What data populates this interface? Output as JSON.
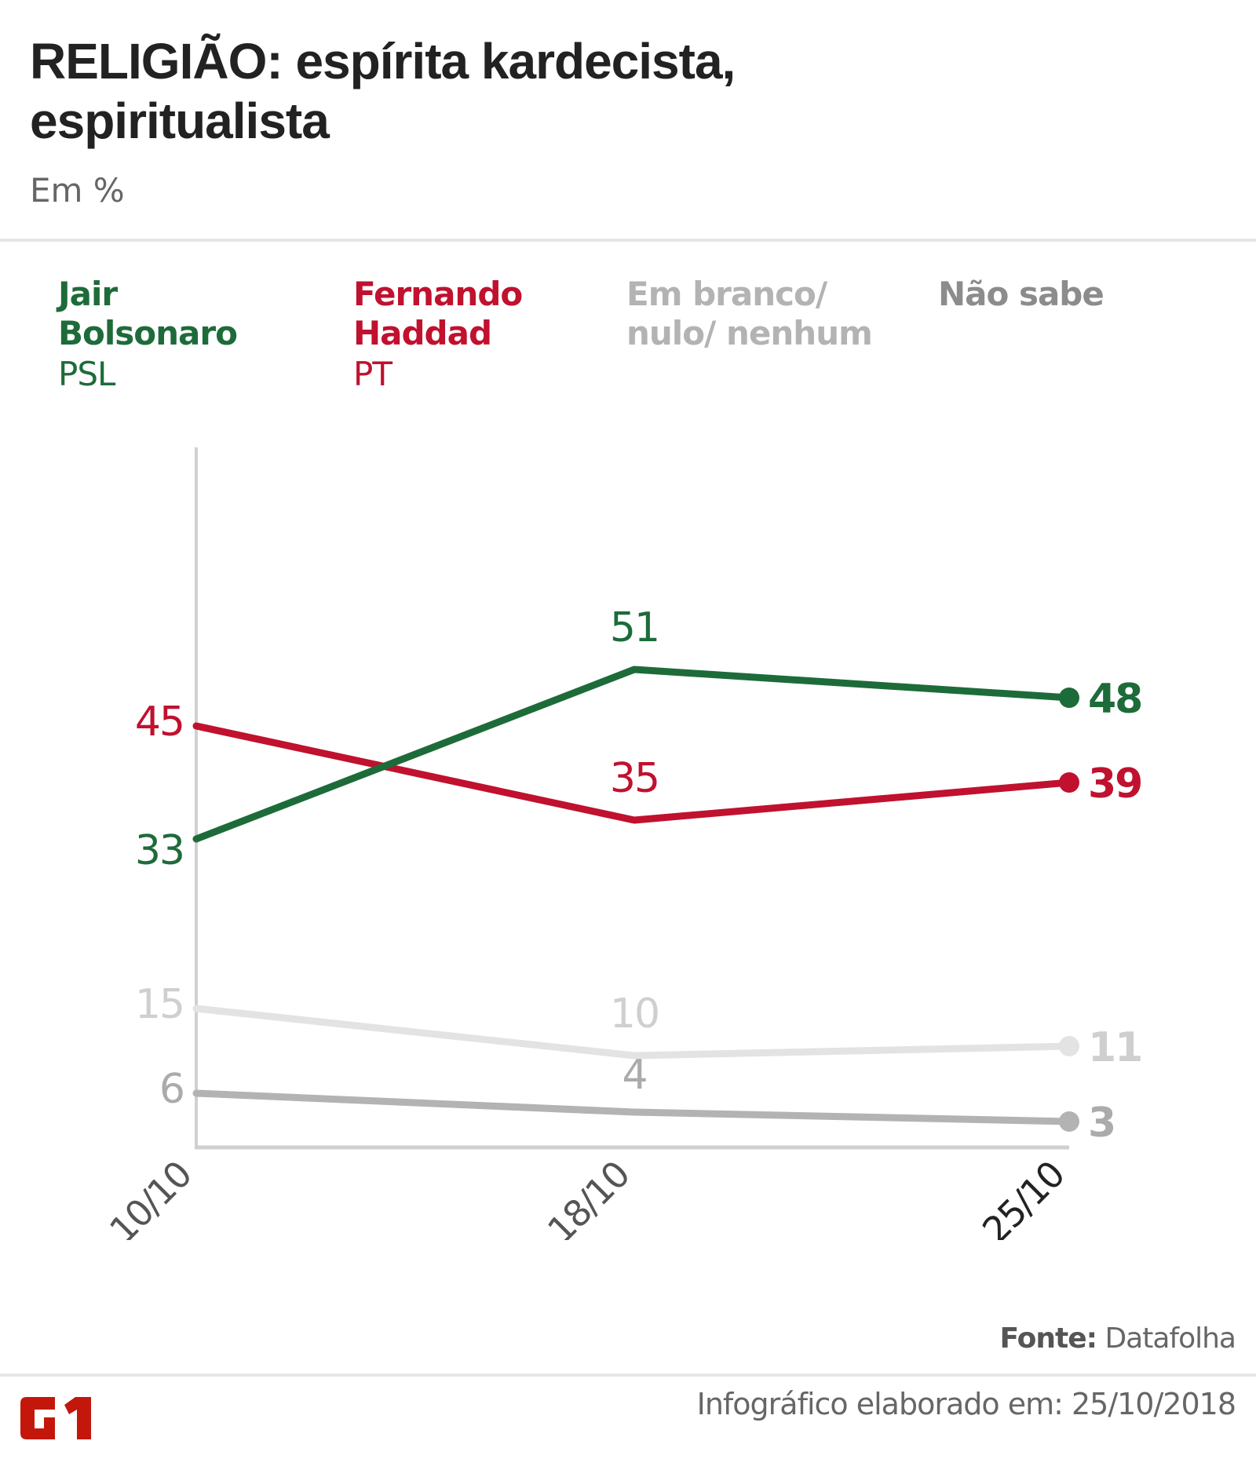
{
  "header": {
    "title_line1": "RELIGIÃO: espírita kardecista,",
    "title_line2": "espiritualista",
    "subtitle": "Em %"
  },
  "legend": [
    {
      "name_line1": "Jair",
      "name_line2": "Bolsonaro",
      "party": "PSL",
      "color": "#1e6b3a"
    },
    {
      "name_line1": "Fernando",
      "name_line2": "Haddad",
      "party": "PT",
      "color": "#c0112f"
    },
    {
      "name_line1": "Em branco/",
      "name_line2": "nulo/ nenhum",
      "party": "",
      "color": "#b3b3b3"
    },
    {
      "name_line1": "Não sabe",
      "name_line2": "",
      "party": "",
      "color": "#8c8c8c"
    }
  ],
  "chart_data": {
    "type": "line",
    "title": "RELIGIÃO: espírita kardecista, espiritualista",
    "subtitle": "Em %",
    "xlabel": "",
    "ylabel": "",
    "x": [
      "10/10",
      "18/10",
      "25/10"
    ],
    "ylim": [
      0,
      60
    ],
    "grid": false,
    "legend_position": "top",
    "series": [
      {
        "name": "Jair Bolsonaro (PSL)",
        "values": [
          33,
          51,
          48
        ],
        "color": "#1e6b3a",
        "label_color": "#1e6b3a"
      },
      {
        "name": "Fernando Haddad (PT)",
        "values": [
          45,
          35,
          39
        ],
        "color": "#c0112f",
        "label_color": "#c0112f"
      },
      {
        "name": "Em branco/ nulo/ nenhum",
        "values": [
          15,
          10,
          11
        ],
        "color": "#e3e3e3",
        "label_color": "#cfcfcf"
      },
      {
        "name": "Não sabe",
        "values": [
          6,
          4,
          3
        ],
        "color": "#b3b3b3",
        "label_color": "#ababab"
      }
    ]
  },
  "footer": {
    "source_label": "Fonte:",
    "source_value": "Datafolha",
    "elaborated": "Infográfico elaborado em: 25/10/2018",
    "logo_text": "G1",
    "logo_color": "#c4170c"
  }
}
